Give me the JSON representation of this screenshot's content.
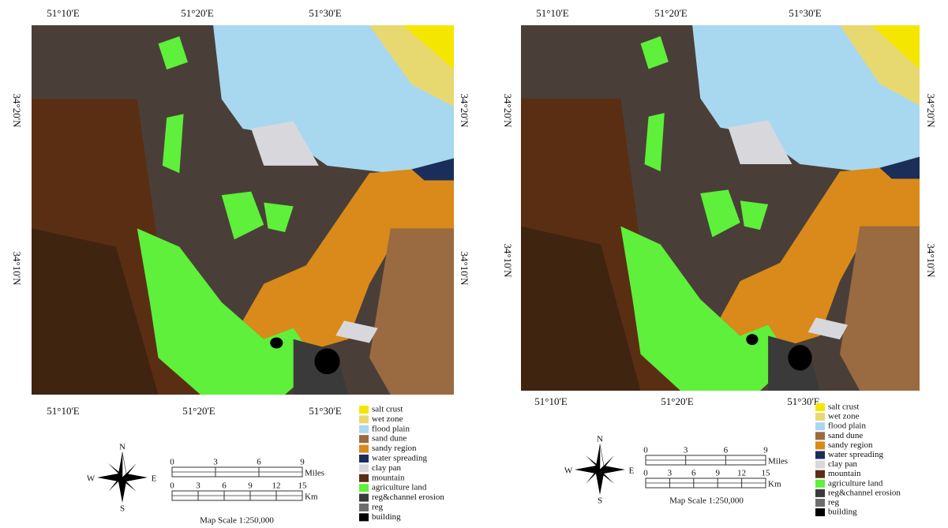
{
  "maps": [
    {
      "top_labels": [
        "51°10'E",
        "51°20'E",
        "51°30'E"
      ],
      "left_labels": [
        "34°20'N",
        "34°10'N"
      ],
      "right_labels": [
        "34°20'N",
        "34°10'N"
      ],
      "bottom_labels": [
        "51°10'E",
        "51°20'E",
        "51°30'E"
      ],
      "compass": {
        "n": "N",
        "e": "E",
        "s": "S",
        "w": "W"
      },
      "scale": {
        "miles": {
          "ticks": [
            0,
            3,
            6,
            9
          ],
          "unit": "Miles"
        },
        "km": {
          "ticks": [
            0,
            3,
            6,
            9,
            12,
            15
          ],
          "unit": "Km"
        },
        "caption": "Map Scale 1:250,000"
      },
      "legend": [
        {
          "label": "salt crust",
          "color": "#f5e600"
        },
        {
          "label": "wet zone",
          "color": "#e8d870"
        },
        {
          "label": "flood plain",
          "color": "#a8d8f0"
        },
        {
          "label": "sand dune",
          "color": "#9a6a40"
        },
        {
          "label": "sandy region",
          "color": "#d98a1a"
        },
        {
          "label": "water spreading",
          "color": "#1b2e5a"
        },
        {
          "label": "clay pan",
          "color": "#d8d8dc"
        },
        {
          "label": "mountain",
          "color": "#5a2e12"
        },
        {
          "label": "agriculture land",
          "color": "#5ef03a"
        },
        {
          "label": "reg&channel erosion",
          "color": "#3a3a3a"
        },
        {
          "label": "reg",
          "color": "#6e6e6e"
        },
        {
          "label": "building",
          "color": "#000000"
        }
      ]
    },
    {
      "top_labels": [
        "51°10'E",
        "51°20'E",
        "51°30'E"
      ],
      "left_labels": [
        "34°20'N",
        "34°10'N"
      ],
      "right_labels": [
        "34°20'N",
        "34°10'N"
      ],
      "bottom_labels": [
        "51°10'E",
        "51°20'E",
        "51°30'E"
      ],
      "compass": {
        "n": "N",
        "e": "E",
        "s": "S",
        "w": "W"
      },
      "scale": {
        "miles": {
          "ticks": [
            0,
            3,
            6,
            9
          ],
          "unit": "Miles"
        },
        "km": {
          "ticks": [
            0,
            3,
            6,
            9,
            12,
            15
          ],
          "unit": "Km"
        },
        "caption": "Map Scale 1:250,000"
      },
      "legend": [
        {
          "label": "salt crust",
          "color": "#f5e600"
        },
        {
          "label": "wet zone",
          "color": "#e8d870"
        },
        {
          "label": "flood plain",
          "color": "#a8d8f0"
        },
        {
          "label": "sand dune",
          "color": "#9a6a40"
        },
        {
          "label": "sandy region",
          "color": "#d98a1a"
        },
        {
          "label": "water spreading",
          "color": "#1b2e5a"
        },
        {
          "label": "clay pan",
          "color": "#d8d8dc"
        },
        {
          "label": "mountain",
          "color": "#5a2e12"
        },
        {
          "label": "agriculture land",
          "color": "#5ef03a"
        },
        {
          "label": "reg&channel erosion",
          "color": "#3a3a3a"
        },
        {
          "label": "reg",
          "color": "#6e6e6e"
        },
        {
          "label": "building",
          "color": "#000000"
        }
      ]
    }
  ]
}
